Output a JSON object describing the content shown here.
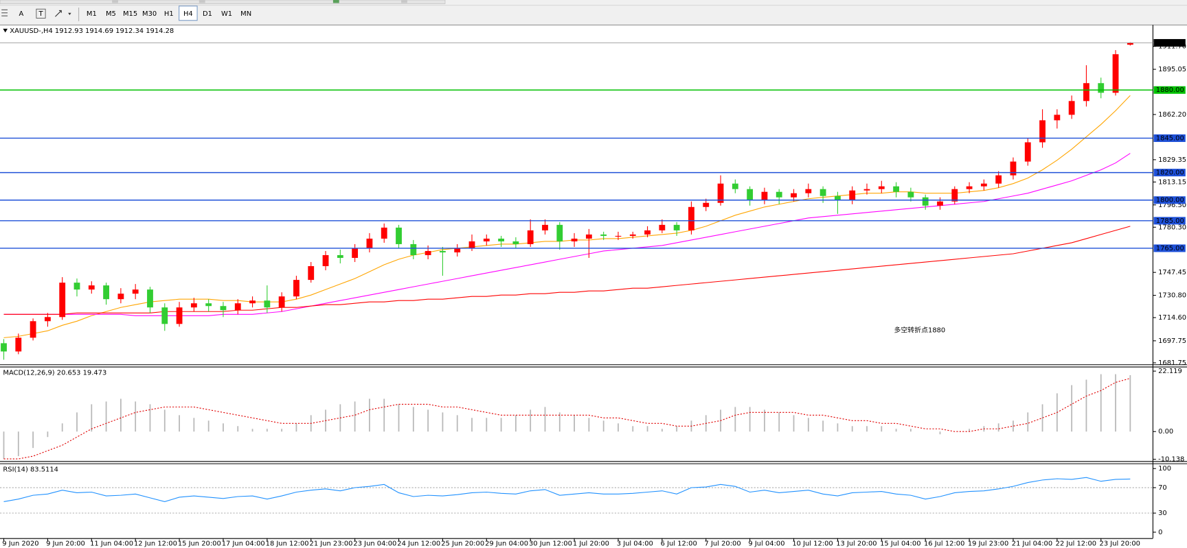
{
  "toolbar": {
    "tools": [
      "A",
      "T"
    ],
    "timeframes": [
      "M1",
      "M5",
      "M15",
      "M30",
      "H1",
      "H4",
      "D1",
      "W1",
      "MN"
    ],
    "active": "H4"
  },
  "chart_data": [
    {
      "type": "candlestick",
      "title": "XAUUSD-,H4  1912.93 1914.69 1912.34 1914.28",
      "ylim": [
        1680.65,
        1919.6
      ],
      "yticks": [
        1681.75,
        1697.75,
        {
          "value": 1714.6,
          "label": "1714.60"
        },
        {
          "value": 1730.8,
          "label": "1730.80"
        },
        1747.45,
        {
          "value": 1780.3,
          "label": "1780.30"
        },
        {
          "value": 1796.5,
          "label": "1796.50"
        },
        1813.15,
        1829.35,
        {
          "value": 1862.2,
          "label": "1862.20"
        },
        1895.05,
        {
          "value": 1911.7,
          "label": "1911.70"
        }
      ],
      "categories": [
        "9 Jun 2020",
        null,
        null,
        "9 Jun 20:00",
        null,
        null,
        "11 Jun 04:00",
        null,
        null,
        "12 Jun 12:00",
        null,
        null,
        "15 Jun 20:00",
        null,
        null,
        "17 Jun 04:00",
        null,
        null,
        "18 Jun 12:00",
        null,
        null,
        "21 Jun 23:00",
        null,
        null,
        "23 Jun 04:00",
        null,
        null,
        "24 Jun 12:00",
        null,
        null,
        "25 Jun 20:00",
        null,
        null,
        "29 Jun 04:00",
        null,
        null,
        "30 Jun 12:00",
        null,
        null,
        "1 Jul 20:00",
        null,
        null,
        "3 Jul 04:00",
        null,
        null,
        "6 Jul 12:00",
        null,
        null,
        "7 Jul 20:00",
        null,
        null,
        "9 Jul 04:00",
        null,
        null,
        "10 Jul 12:00",
        null,
        null,
        "13 Jul 20:00",
        null,
        null,
        "15 Jul 04:00",
        null,
        null,
        "16 Jul 12:00",
        null,
        null,
        "19 Jul 23:00",
        null,
        null,
        "21 Jul 04:00",
        null,
        null,
        "22 Jul 12:00",
        null,
        null,
        "23 Jul 20:00",
        null,
        null
      ],
      "up_color": "#ff0000",
      "down_color": "#32cd32",
      "ohlc": [
        [
          1696,
          1699,
          1684,
          1690
        ],
        [
          1690,
          1703,
          1688,
          1700
        ],
        [
          1700,
          1714,
          1698,
          1712
        ],
        [
          1712,
          1718,
          1708,
          1715
        ],
        [
          1715,
          1744,
          1713,
          1740
        ],
        [
          1740,
          1743,
          1730,
          1735
        ],
        [
          1735,
          1741,
          1732,
          1738
        ],
        [
          1738,
          1740,
          1724,
          1728
        ],
        [
          1728,
          1736,
          1725,
          1732
        ],
        [
          1732,
          1739,
          1728,
          1735
        ],
        [
          1735,
          1737,
          1718,
          1722
        ],
        [
          1722,
          1725,
          1705,
          1710
        ],
        [
          1710,
          1726,
          1708,
          1722
        ],
        [
          1722,
          1729,
          1719,
          1725
        ],
        [
          1725,
          1728,
          1719,
          1723
        ],
        [
          1723,
          1726,
          1715,
          1720
        ],
        [
          1720,
          1728,
          1717,
          1725
        ],
        [
          1725,
          1730,
          1722,
          1727
        ],
        [
          1727,
          1738,
          1718,
          1722
        ],
        [
          1722,
          1733,
          1719,
          1730
        ],
        [
          1730,
          1745,
          1728,
          1742
        ],
        [
          1742,
          1755,
          1740,
          1752
        ],
        [
          1752,
          1763,
          1749,
          1760
        ],
        [
          1760,
          1764,
          1754,
          1758
        ],
        [
          1758,
          1768,
          1755,
          1765
        ],
        [
          1765,
          1776,
          1762,
          1772
        ],
        [
          1772,
          1783,
          1769,
          1780
        ],
        [
          1780,
          1782,
          1765,
          1768
        ],
        [
          1768,
          1771,
          1757,
          1760
        ],
        [
          1760,
          1767,
          1757,
          1763
        ],
        [
          1763,
          1766,
          1745,
          1762
        ],
        [
          1762,
          1768,
          1759,
          1765
        ],
        [
          1765,
          1775,
          1763,
          1770
        ],
        [
          1770,
          1775,
          1767,
          1772
        ],
        [
          1772,
          1774,
          1766,
          1770
        ],
        [
          1770,
          1773,
          1765,
          1768
        ],
        [
          1768,
          1786,
          1766,
          1778
        ],
        [
          1778,
          1786,
          1775,
          1782
        ],
        [
          1782,
          1784,
          1764,
          1770
        ],
        [
          1770,
          1776,
          1766,
          1772
        ],
        [
          1772,
          1779,
          1758,
          1775
        ],
        [
          1775,
          1777,
          1771,
          1774
        ],
        [
          1774,
          1777,
          1771,
          1774
        ],
        [
          1774,
          1777,
          1772,
          1775
        ],
        [
          1775,
          1781,
          1773,
          1778
        ],
        [
          1778,
          1786,
          1776,
          1782
        ],
        [
          1782,
          1784,
          1774,
          1778
        ],
        [
          1778,
          1799,
          1775,
          1795
        ],
        [
          1795,
          1801,
          1792,
          1798
        ],
        [
          1798,
          1818,
          1796,
          1812
        ],
        [
          1812,
          1815,
          1805,
          1808
        ],
        [
          1808,
          1810,
          1796,
          1800
        ],
        [
          1800,
          1809,
          1797,
          1806
        ],
        [
          1806,
          1808,
          1797,
          1802
        ],
        [
          1802,
          1808,
          1799,
          1805
        ],
        [
          1805,
          1812,
          1802,
          1808
        ],
        [
          1808,
          1810,
          1798,
          1803
        ],
        [
          1803,
          1806,
          1790,
          1800
        ],
        [
          1800,
          1810,
          1797,
          1807
        ],
        [
          1807,
          1812,
          1804,
          1808
        ],
        [
          1808,
          1814,
          1805,
          1810
        ],
        [
          1810,
          1813,
          1802,
          1806
        ],
        [
          1806,
          1809,
          1799,
          1802
        ],
        [
          1802,
          1804,
          1793,
          1796
        ],
        [
          1796,
          1802,
          1793,
          1799
        ],
        [
          1799,
          1810,
          1797,
          1808
        ],
        [
          1808,
          1813,
          1805,
          1810
        ],
        [
          1810,
          1815,
          1807,
          1812
        ],
        [
          1812,
          1821,
          1809,
          1818
        ],
        [
          1818,
          1831,
          1815,
          1828
        ],
        [
          1828,
          1845,
          1825,
          1842
        ],
        [
          1842,
          1866,
          1838,
          1858
        ],
        [
          1858,
          1866,
          1852,
          1862
        ],
        [
          1862,
          1876,
          1859,
          1872
        ],
        [
          1872,
          1898,
          1868,
          1885
        ],
        [
          1885,
          1889,
          1874,
          1878
        ],
        [
          1878,
          1909,
          1876,
          1906
        ],
        [
          1912.93,
          1914.69,
          1912.34,
          1914.28
        ]
      ],
      "series": [
        {
          "color": "#ffa500",
          "values": [
            1700,
            1701,
            1703,
            1705,
            1709,
            1712,
            1716,
            1719,
            1722,
            1724,
            1726,
            1727,
            1728,
            1728,
            1728,
            1727,
            1727,
            1726,
            1726,
            1726,
            1728,
            1731,
            1735,
            1739,
            1743,
            1748,
            1753,
            1757,
            1760,
            1762,
            1764,
            1765,
            1766,
            1767,
            1768,
            1768,
            1769,
            1770,
            1770,
            1771,
            1771,
            1772,
            1772,
            1773,
            1774,
            1775,
            1776,
            1778,
            1781,
            1785,
            1789,
            1792,
            1795,
            1797,
            1799,
            1801,
            1802,
            1803,
            1804,
            1805,
            1805,
            1806,
            1806,
            1805,
            1805,
            1805,
            1806,
            1807,
            1809,
            1812,
            1816,
            1822,
            1829,
            1837,
            1846,
            1855,
            1865,
            1876
          ]
        },
        {
          "color": "#ff00ff",
          "values": [
            1717,
            1717,
            1717,
            1717,
            1717,
            1717,
            1717,
            1717,
            1717,
            1716,
            1716,
            1716,
            1716,
            1716,
            1716,
            1717,
            1717,
            1717,
            1718,
            1719,
            1721,
            1723,
            1725,
            1727,
            1729,
            1731,
            1733,
            1735,
            1737,
            1739,
            1741,
            1743,
            1745,
            1747,
            1749,
            1751,
            1753,
            1755,
            1757,
            1759,
            1761,
            1763,
            1764,
            1765,
            1766,
            1767,
            1769,
            1771,
            1773,
            1775,
            1777,
            1779,
            1781,
            1783,
            1785,
            1787,
            1788,
            1789,
            1790,
            1791,
            1792,
            1793,
            1794,
            1795,
            1796,
            1797,
            1798,
            1799,
            1801,
            1803,
            1805,
            1808,
            1811,
            1814,
            1818,
            1822,
            1827,
            1834
          ]
        },
        {
          "color": "#ff0000",
          "values": [
            1717,
            1717,
            1717,
            1717,
            1717,
            1718,
            1718,
            1718,
            1718,
            1718,
            1718,
            1719,
            1719,
            1719,
            1719,
            1719,
            1720,
            1720,
            1721,
            1722,
            1722,
            1723,
            1724,
            1724,
            1725,
            1726,
            1726,
            1727,
            1727,
            1728,
            1728,
            1729,
            1730,
            1730,
            1731,
            1731,
            1732,
            1732,
            1733,
            1733,
            1734,
            1734,
            1735,
            1736,
            1736,
            1737,
            1738,
            1739,
            1740,
            1741,
            1742,
            1743,
            1744,
            1745,
            1746,
            1747,
            1748,
            1749,
            1750,
            1751,
            1752,
            1753,
            1754,
            1755,
            1756,
            1757,
            1758,
            1759,
            1760,
            1761,
            1763,
            1765,
            1767,
            1769,
            1772,
            1775,
            1778,
            1781
          ]
        }
      ],
      "levels": [
        {
          "value": 1880,
          "label": "1880.00",
          "color": "#00c000"
        },
        {
          "value": 1845,
          "label": "1845.00",
          "color": "#1e50d8"
        },
        {
          "value": 1820,
          "label": "1820.00",
          "color": "#1e50d8"
        },
        {
          "value": 1800,
          "label": "1800.00",
          "color": "#1e50d8"
        },
        {
          "value": 1785,
          "label": "1785.00",
          "color": "#1e50d8"
        },
        {
          "value": 1765,
          "label": "1765.00",
          "color": "#1e50d8"
        }
      ],
      "current": {
        "value": 1914.28,
        "label": "1914.28"
      },
      "annotation": {
        "text": "多空转折点1880",
        "color": "#e00000"
      }
    },
    {
      "type": "macd",
      "title": "MACD(12,26,9) 20.653 19.473",
      "ylim": [
        -10.8,
        23.5
      ],
      "yticks": [
        22.119,
        {
          "value": 0,
          "label": "0.00"
        },
        -10.138
      ],
      "histogram": {
        "color": "#b8b8b8",
        "values": [
          -10,
          -9,
          -6,
          -2,
          3,
          7,
          10,
          11,
          12,
          11,
          10,
          8,
          6,
          5,
          4,
          3,
          2,
          1,
          1,
          1,
          3,
          6,
          8,
          10,
          11,
          12,
          12,
          10,
          9,
          8,
          7,
          6,
          5,
          5,
          5,
          6,
          8,
          9,
          7,
          6,
          5,
          4,
          3,
          2,
          2,
          1,
          2,
          4,
          6,
          8,
          9,
          9,
          8,
          7,
          6,
          5,
          4,
          3,
          2,
          2,
          2,
          1,
          1,
          0,
          -1,
          0,
          1,
          2,
          3,
          4,
          7,
          10,
          14,
          17,
          19,
          21,
          21,
          20.653
        ]
      },
      "signal": {
        "color": "#e00000",
        "values": [
          -10,
          -10,
          -9,
          -7,
          -5,
          -2,
          1,
          3,
          5,
          7,
          8,
          9,
          9,
          9,
          8,
          7,
          6,
          5,
          4,
          3,
          3,
          3,
          4,
          5,
          6,
          8,
          9,
          10,
          10,
          10,
          9,
          9,
          8,
          7,
          6,
          6,
          6,
          6,
          6,
          6,
          6,
          5,
          5,
          4,
          3,
          3,
          2,
          2,
          3,
          4,
          6,
          7,
          7,
          7,
          7,
          6,
          6,
          5,
          4,
          4,
          3,
          3,
          2,
          1,
          1,
          0,
          0,
          1,
          1,
          2,
          3,
          5,
          7,
          10,
          13,
          15,
          18,
          19.473
        ]
      }
    },
    {
      "type": "rsi",
      "title": "RSI(14) 83.5114",
      "ylim": [
        -9.4,
        107
      ],
      "yticks": [
        100,
        70,
        30,
        0
      ],
      "levels": [
        70,
        30
      ],
      "color": "#1e90ff",
      "values": [
        48,
        52,
        58,
        60,
        66,
        62,
        63,
        57,
        58,
        60,
        54,
        48,
        55,
        57,
        55,
        53,
        56,
        57,
        52,
        57,
        63,
        66,
        68,
        65,
        70,
        72,
        75,
        62,
        56,
        58,
        57,
        59,
        62,
        63,
        61,
        60,
        65,
        67,
        58,
        60,
        62,
        60,
        60,
        61,
        63,
        65,
        60,
        70,
        71,
        75,
        72,
        63,
        66,
        62,
        64,
        66,
        60,
        57,
        62,
        63,
        64,
        60,
        58,
        52,
        56,
        62,
        64,
        65,
        68,
        72,
        78,
        82,
        84,
        83,
        86,
        80,
        83,
        83.5114
      ]
    }
  ]
}
